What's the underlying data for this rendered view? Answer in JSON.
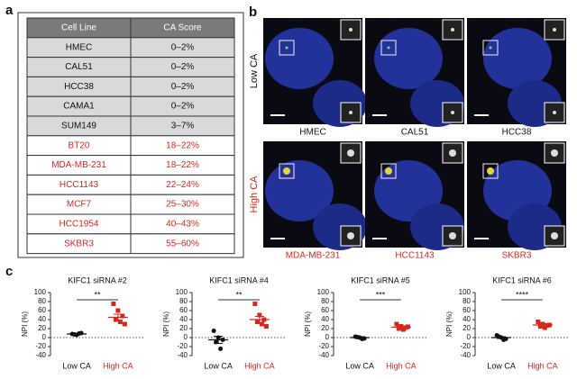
{
  "panels": [
    "a",
    "b",
    "c"
  ],
  "table": {
    "header": [
      "Cell Line",
      "CA Score"
    ],
    "rows": [
      {
        "cells": [
          "HMEC",
          "0–2%"
        ],
        "fill": "#d9d9d9",
        "text_color": "#111111"
      },
      {
        "cells": [
          "CAL51",
          "0–2%"
        ],
        "fill": "#d9d9d9",
        "text_color": "#111111"
      },
      {
        "cells": [
          "HCC38",
          "0–2%"
        ],
        "fill": "#d9d9d9",
        "text_color": "#111111"
      },
      {
        "cells": [
          "CAMA1",
          "0–2%"
        ],
        "fill": "#d9d9d9",
        "text_color": "#111111"
      },
      {
        "cells": [
          "SUM149",
          "3–7%"
        ],
        "fill": "#d9d9d9",
        "text_color": "#111111"
      },
      {
        "cells": [
          "BT20",
          "18–22%"
        ],
        "fill": "#ffffff",
        "text_color": "#d7261e"
      },
      {
        "cells": [
          "MDA-MB-231",
          "18–22%"
        ],
        "fill": "#ffffff",
        "text_color": "#d7261e"
      },
      {
        "cells": [
          "HCC1143",
          "22–24%"
        ],
        "fill": "#ffffff",
        "text_color": "#d7261e"
      },
      {
        "cells": [
          "MCF7",
          "25–30%"
        ],
        "fill": "#ffffff",
        "text_color": "#d7261e"
      },
      {
        "cells": [
          "HCC1954",
          "40–43%"
        ],
        "fill": "#ffffff",
        "text_color": "#d7261e"
      },
      {
        "cells": [
          "SKBR3",
          "55–60%"
        ],
        "fill": "#ffffff",
        "text_color": "#d7261e"
      }
    ]
  },
  "images": {
    "rows": [
      {
        "label": "Low CA",
        "color": "#111111",
        "cells": [
          "HMEC",
          "CAL51",
          "HCC38"
        ]
      },
      {
        "label": "High CA",
        "color": "#d7261e",
        "cells": [
          "MDA-MB-231",
          "HCC1143",
          "SKBR3"
        ]
      }
    ]
  },
  "chart_data": [
    {
      "type": "dot",
      "title": "KIFC1 siRNA #2",
      "ylabel": "NPI (%)",
      "categories": [
        "Low CA",
        "High CA"
      ],
      "significance": "**",
      "ylim": [
        -40,
        100
      ],
      "yticks": [
        -40,
        -20,
        0,
        20,
        40,
        60,
        80,
        100
      ],
      "groups": [
        {
          "color": "#111111",
          "values": [
            8,
            6,
            10,
            7,
            9
          ],
          "mean": 8,
          "error": 2
        },
        {
          "color": "#d7261e",
          "values": [
            75,
            60,
            48,
            40,
            35,
            30
          ],
          "mean": 45,
          "error": 7
        }
      ]
    },
    {
      "type": "dot",
      "title": "KIFC1 siRNA #4",
      "ylabel": "NPI (%)",
      "categories": [
        "Low CA",
        "High CA"
      ],
      "significance": "**",
      "ylim": [
        -40,
        100
      ],
      "yticks": [
        -40,
        -20,
        0,
        20,
        40,
        60,
        80,
        100
      ],
      "groups": [
        {
          "color": "#111111",
          "values": [
            15,
            0,
            -5,
            -10,
            -25
          ],
          "mean": -5,
          "error": 8
        },
        {
          "color": "#d7261e",
          "values": [
            75,
            50,
            40,
            35,
            30,
            25
          ],
          "mean": 40,
          "error": 7
        }
      ]
    },
    {
      "type": "dot",
      "title": "KIFC1 siRNA #5",
      "ylabel": "NPI (%)",
      "categories": [
        "Low CA",
        "High CA"
      ],
      "significance": "***",
      "ylim": [
        -40,
        100
      ],
      "yticks": [
        -40,
        -20,
        0,
        20,
        40,
        60,
        80,
        100
      ],
      "groups": [
        {
          "color": "#111111",
          "values": [
            2,
            0,
            -2,
            1,
            -3
          ],
          "mean": 0,
          "error": 2
        },
        {
          "color": "#d7261e",
          "values": [
            30,
            25,
            22,
            20,
            18,
            24
          ],
          "mean": 23,
          "error": 3
        }
      ]
    },
    {
      "type": "dot",
      "title": "KIFC1 siRNA #6",
      "ylabel": "NPI (%)",
      "categories": [
        "Low CA",
        "High CA"
      ],
      "significance": "****",
      "ylim": [
        -40,
        100
      ],
      "yticks": [
        -40,
        -20,
        0,
        20,
        40,
        60,
        80,
        100
      ],
      "groups": [
        {
          "color": "#111111",
          "values": [
            5,
            0,
            -3,
            2,
            -5
          ],
          "mean": 0,
          "error": 2
        },
        {
          "color": "#d7261e",
          "values": [
            35,
            30,
            27,
            25,
            22,
            28
          ],
          "mean": 28,
          "error": 2
        }
      ]
    }
  ]
}
